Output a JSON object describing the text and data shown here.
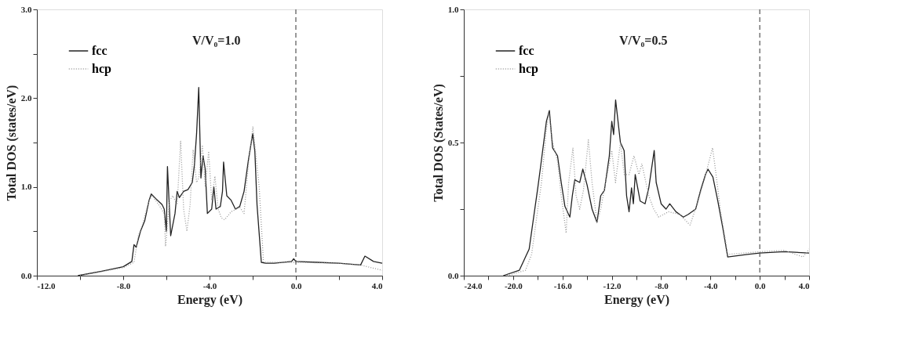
{
  "chart_data": [
    {
      "type": "line",
      "xlabel": "Energy (eV)",
      "ylabel": "Total DOS (states/eV)",
      "annotations": [
        "V/V₀=1.0"
      ],
      "grid": false,
      "legend": "top left",
      "marker": "none",
      "xlim": [
        -12,
        4
      ],
      "ylim": [
        0,
        3
      ],
      "xticks": [
        {
          "value": -12,
          "label": "-12.0"
        },
        {
          "value": -10,
          "label": null
        },
        {
          "value": -8,
          "label": "-8.0"
        },
        {
          "value": -6,
          "label": null
        },
        {
          "value": -4,
          "label": "-4.0"
        },
        {
          "value": -2,
          "label": null
        },
        {
          "value": 0,
          "label": "0.0"
        },
        {
          "value": 2,
          "label": null
        },
        {
          "value": 4,
          "label": "4.0"
        }
      ],
      "yticks": [
        {
          "value": 0,
          "label": "0.0"
        },
        {
          "value": 0.5,
          "label": null
        },
        {
          "value": 1,
          "label": "1.0"
        },
        {
          "value": 1.5,
          "label": null
        },
        {
          "value": 2,
          "label": "2.0"
        },
        {
          "value": 2.5,
          "label": null
        },
        {
          "value": 3,
          "label": "3.0"
        }
      ],
      "ref_lines": [
        {
          "axis": "x",
          "value": 0,
          "line_style": "dashed",
          "color": "#555555"
        }
      ],
      "series": [
        {
          "name": "fcc",
          "color": "#222222",
          "line_style": "solid",
          "x": [
            -10.1,
            -9,
            -8,
            -7.6,
            -7.5,
            -7.4,
            -7.2,
            -7,
            -6.8,
            -6.7,
            -6.5,
            -6.2,
            -6.1,
            -6.0,
            -5.95,
            -5.8,
            -5.6,
            -5.5,
            -5.4,
            -5.2,
            -5,
            -4.8,
            -4.7,
            -4.6,
            -4.5,
            -4.4,
            -4.3,
            -4.2,
            -4.1,
            -3.9,
            -3.8,
            -3.7,
            -3.5,
            -3.4,
            -3.35,
            -3.2,
            -3,
            -2.8,
            -2.6,
            -2.4,
            -2.2,
            -2,
            -1.9,
            -1.8,
            -1.6,
            -1.4,
            -1,
            -0.2,
            -0.1,
            0,
            1,
            2,
            3,
            3.2,
            3.6,
            4
          ],
          "values": [
            0,
            0.05,
            0.1,
            0.16,
            0.35,
            0.32,
            0.5,
            0.62,
            0.85,
            0.92,
            0.87,
            0.8,
            0.75,
            0.5,
            1.23,
            0.45,
            0.7,
            0.95,
            0.88,
            0.95,
            0.97,
            1.05,
            1.25,
            1.6,
            2.12,
            1.1,
            1.35,
            1.2,
            0.7,
            0.75,
            1.0,
            0.75,
            0.78,
            0.95,
            1.28,
            0.9,
            0.85,
            0.75,
            0.78,
            0.95,
            1.3,
            1.6,
            1.4,
            0.8,
            0.15,
            0.14,
            0.14,
            0.16,
            0.19,
            0.16,
            0.15,
            0.14,
            0.12,
            0.22,
            0.16,
            0.14
          ]
        },
        {
          "name": "hcp",
          "color": "#999999",
          "line_style": "dotted",
          "x": [
            -10,
            -8,
            -7.5,
            -7.3,
            -7.1,
            -6.8,
            -6.65,
            -6.3,
            -6.1,
            -6.04,
            -5.85,
            -5.7,
            -5.5,
            -5.34,
            -5.2,
            -5.05,
            -4.9,
            -4.76,
            -4.6,
            -4.5,
            -4.33,
            -4.2,
            -4.04,
            -3.9,
            -3.75,
            -3.6,
            -3.45,
            -3.3,
            -3,
            -2.6,
            -2.4,
            -2.2,
            -1.99,
            -1.7,
            -1.5,
            0,
            2,
            3,
            4
          ],
          "values": [
            0,
            0.09,
            0.15,
            0.45,
            0.58,
            0.85,
            0.9,
            0.78,
            0.7,
            0.33,
            0.85,
            0.9,
            0.8,
            1.52,
            0.75,
            0.5,
            0.8,
            1.42,
            1.05,
            1.1,
            1.47,
            1.0,
            1.4,
            0.85,
            1.12,
            0.75,
            0.65,
            0.63,
            0.72,
            0.77,
            0.7,
            1.25,
            1.68,
            1.0,
            0.15,
            0.15,
            0.14,
            0.12,
            0.06
          ]
        }
      ]
    },
    {
      "type": "line",
      "xlabel": "Energy (eV)",
      "ylabel": "Total DOS (States/eV)",
      "annotations": [
        "V/V₀=0.5"
      ],
      "grid": false,
      "legend": "top left",
      "marker": "none",
      "xlim": [
        -24,
        4
      ],
      "ylim": [
        0,
        1
      ],
      "xticks": [
        {
          "value": -24,
          "label": "-24.0"
        },
        {
          "value": -22,
          "label": null
        },
        {
          "value": -20,
          "label": "-20.0"
        },
        {
          "value": -18,
          "label": null
        },
        {
          "value": -16,
          "label": "-16.0"
        },
        {
          "value": -14,
          "label": null
        },
        {
          "value": -12,
          "label": "-12.0"
        },
        {
          "value": -10,
          "label": null
        },
        {
          "value": -8,
          "label": "-8.0"
        },
        {
          "value": -6,
          "label": null
        },
        {
          "value": -4,
          "label": "-4.0"
        },
        {
          "value": -2,
          "label": null
        },
        {
          "value": 0,
          "label": "0.0"
        },
        {
          "value": 2,
          "label": null
        },
        {
          "value": 4,
          "label": "4.0"
        }
      ],
      "yticks": [
        {
          "value": 0,
          "label": "0.0"
        },
        {
          "value": 0.25,
          "label": null
        },
        {
          "value": 0.5,
          "label": "0.5"
        },
        {
          "value": 0.75,
          "label": null
        },
        {
          "value": 1,
          "label": "1.0"
        }
      ],
      "ref_lines": [
        {
          "axis": "x",
          "value": 0,
          "line_style": "dashed",
          "color": "#555555"
        }
      ],
      "series": [
        {
          "name": "fcc",
          "color": "#222222",
          "line_style": "solid",
          "x": [
            -20.8,
            -19.5,
            -18.7,
            -18.0,
            -17.8,
            -17.3,
            -17.06,
            -16.8,
            -16.4,
            -16.1,
            -15.8,
            -15.4,
            -15.2,
            -15,
            -14.6,
            -14.35,
            -14,
            -13.6,
            -13.2,
            -12.9,
            -12.6,
            -12.2,
            -12,
            -11.85,
            -11.69,
            -11.3,
            -11,
            -10.8,
            -10.6,
            -10.4,
            -10.25,
            -10.1,
            -9.7,
            -9.3,
            -9,
            -8.56,
            -8.4,
            -8,
            -7.6,
            -7.3,
            -6.8,
            -6.2,
            -5.8,
            -5.2,
            -4.8,
            -4.4,
            -4.2,
            -3.8,
            -3.4,
            -3,
            -2.6,
            -1,
            0,
            2,
            4
          ],
          "values": [
            0,
            0.02,
            0.1,
            0.33,
            0.4,
            0.58,
            0.62,
            0.48,
            0.45,
            0.35,
            0.26,
            0.22,
            0.3,
            0.36,
            0.35,
            0.4,
            0.34,
            0.25,
            0.2,
            0.3,
            0.32,
            0.45,
            0.58,
            0.53,
            0.66,
            0.5,
            0.47,
            0.3,
            0.24,
            0.33,
            0.27,
            0.38,
            0.28,
            0.27,
            0.33,
            0.47,
            0.35,
            0.27,
            0.25,
            0.27,
            0.24,
            0.22,
            0.23,
            0.25,
            0.32,
            0.38,
            0.4,
            0.37,
            0.28,
            0.18,
            0.07,
            0.08,
            0.085,
            0.09,
            0.085
          ]
        },
        {
          "name": "hcp",
          "color": "#999999",
          "line_style": "dotted",
          "x": [
            -20.5,
            -19,
            -18.5,
            -18,
            -17.7,
            -17.3,
            -17.1,
            -16.8,
            -16.4,
            -16.1,
            -15.7,
            -15.5,
            -15.15,
            -14.9,
            -14.6,
            -14.3,
            -13.9,
            -13.6,
            -13.2,
            -12.9,
            -12.5,
            -12,
            -11.7,
            -11.3,
            -11,
            -10.6,
            -10.2,
            -9.8,
            -9.56,
            -9,
            -8.6,
            -8.2,
            -7.4,
            -6.5,
            -5.65,
            -5,
            -4.5,
            -3.83,
            -3.6,
            -3.2,
            -2.6,
            0,
            2,
            3.5,
            4
          ],
          "values": [
            0,
            0.02,
            0.08,
            0.25,
            0.35,
            0.55,
            0.61,
            0.5,
            0.43,
            0.3,
            0.16,
            0.35,
            0.48,
            0.3,
            0.25,
            0.32,
            0.51,
            0.35,
            0.2,
            0.25,
            0.35,
            0.47,
            0.35,
            0.5,
            0.38,
            0.38,
            0.45,
            0.38,
            0.42,
            0.3,
            0.25,
            0.22,
            0.24,
            0.23,
            0.19,
            0.28,
            0.36,
            0.48,
            0.4,
            0.25,
            0.08,
            0.09,
            0.095,
            0.07,
            0.1
          ]
        }
      ]
    }
  ]
}
